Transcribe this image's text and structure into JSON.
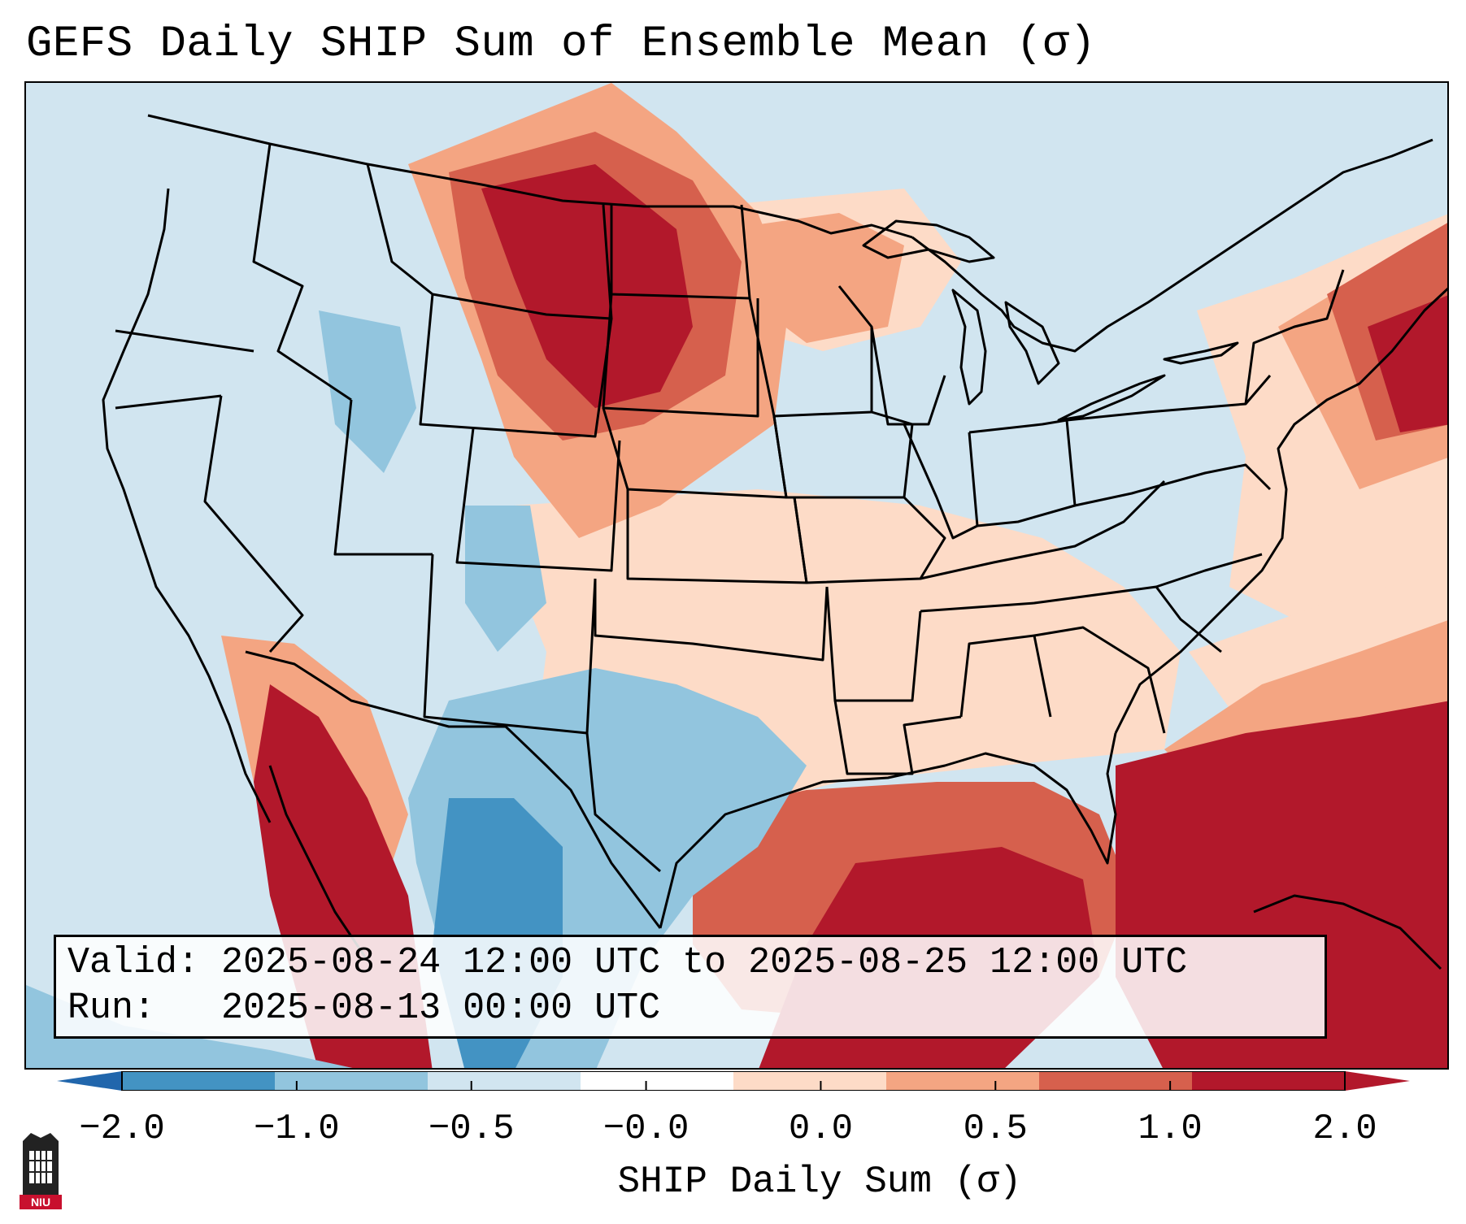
{
  "title": "GEFS Daily SHIP Sum of Ensemble Mean (σ)",
  "info": {
    "valid": "Valid: 2025-08-24 12:00 UTC to 2025-08-25 12:00 UTC",
    "run": "Run:   2025-08-13 00:00 UTC"
  },
  "colorbar": {
    "label": "SHIP Daily Sum (σ)",
    "ticks": [
      "−2.0",
      "−1.0",
      "−0.5",
      "−0.0",
      "0.0",
      "0.5",
      "1.0",
      "2.0"
    ],
    "colors": [
      "#4393c3",
      "#92c5de",
      "#d1e5f0",
      "#ffffff",
      "#fddbc7",
      "#f4a582",
      "#d6604d",
      "#b2182b"
    ],
    "extend_low": "#2166ac",
    "extend_high": "#b2182b"
  },
  "palette": {
    "ocean": "#d1e5f0",
    "weak_neg": "#92c5de",
    "mod_neg": "#4393c3",
    "weak_pos": "#fddbc7",
    "mod_pos": "#f4a582",
    "pos": "#d6604d",
    "strong_pos": "#b2182b",
    "border": "#000000"
  },
  "logo": {
    "text": "NIU",
    "name": "niu-logo"
  }
}
